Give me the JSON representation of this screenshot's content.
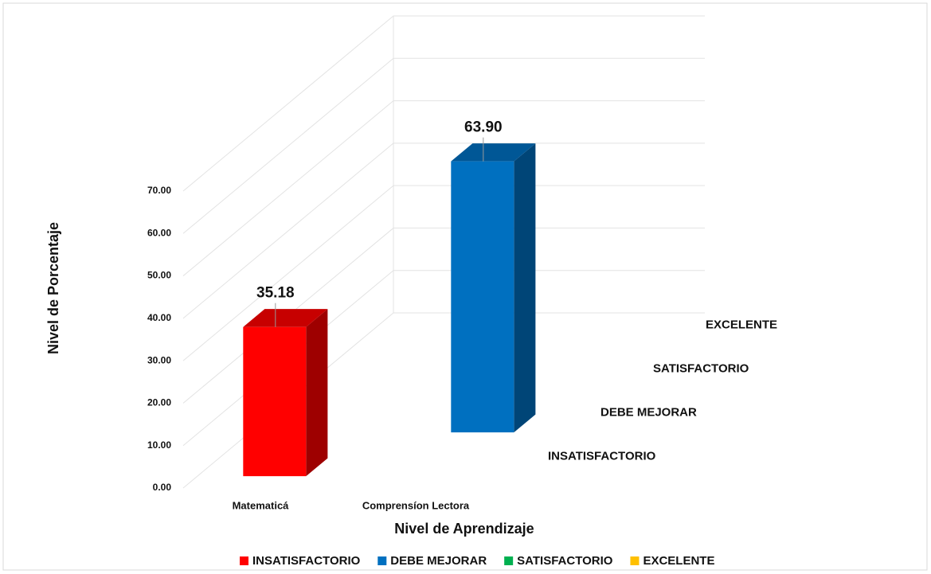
{
  "chart_data": {
    "type": "bar3d",
    "y_axis_label": "Nivel de Porcentaje",
    "x_axis_label": "Nivel de Aprendizaje",
    "categories": [
      "Matematicá",
      "Comprensíon Lectora"
    ],
    "series": [
      {
        "name": "INSATISFACTORIO",
        "color": "#ff0000",
        "values": [
          35.18,
          null
        ],
        "value_labels": [
          "35.18",
          null
        ]
      },
      {
        "name": "DEBE MEJORAR",
        "color": "#0070c0",
        "values": [
          null,
          63.9
        ],
        "value_labels": [
          null,
          "63.90"
        ]
      },
      {
        "name": "SATISFACTORIO",
        "color": "#00b050",
        "values": [
          null,
          null
        ],
        "value_labels": [
          null,
          null
        ]
      },
      {
        "name": "EXCELENTE",
        "color": "#ffc000",
        "values": [
          null,
          null
        ],
        "value_labels": [
          null,
          null
        ]
      }
    ],
    "ylim": [
      0,
      70
    ],
    "yticks": [
      {
        "value": 0,
        "label": "0.00"
      },
      {
        "value": 10,
        "label": "10.00"
      },
      {
        "value": 20,
        "label": "20.00"
      },
      {
        "value": 30,
        "label": "30.00"
      },
      {
        "value": 40,
        "label": "40.00"
      },
      {
        "value": 50,
        "label": "50.00"
      },
      {
        "value": 60,
        "label": "60.00"
      },
      {
        "value": 70,
        "label": "70.00"
      }
    ],
    "grid": true,
    "legend": "bottom"
  }
}
